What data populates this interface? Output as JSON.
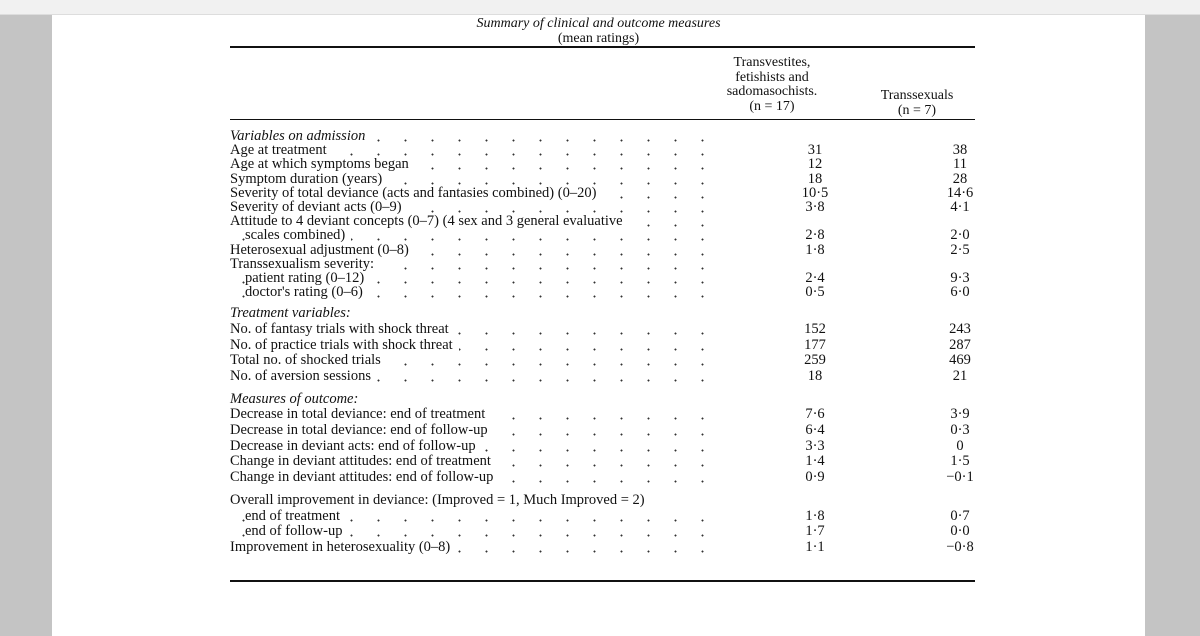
{
  "caption": {
    "title": "Summary of clinical and outcome measures",
    "subtitle": "(mean ratings)"
  },
  "columns": [
    {
      "lines": [
        "Transvestites,",
        "fetishists and",
        "sadomasochists.",
        "(n = 17)"
      ]
    },
    {
      "lines": [
        "Transsexuals",
        "(n = 7)"
      ]
    }
  ],
  "sections": [
    {
      "heading": "Variables on admission",
      "rows": [
        {
          "label": "Age at treatment",
          "v1": "31",
          "v2": "38"
        },
        {
          "label": "Age at which symptoms began",
          "v1": "12",
          "v2": "11"
        },
        {
          "label": "Symptom duration (years)",
          "v1": "18",
          "v2": "28"
        },
        {
          "label": "Severity of total deviance (acts and fantasies combined) (0–20)",
          "v1": "10·5",
          "v2": "14·6"
        },
        {
          "label": "Severity of deviant acts (0–9)",
          "v1": "3·8",
          "v2": "4·1"
        },
        {
          "label": "Attitude to 4 deviant concepts (0–7) (4 sex and 3 general evaluative",
          "v1": "",
          "v2": ""
        },
        {
          "label": "scales combined)",
          "v1": "2·8",
          "v2": "2·0",
          "indent": true
        },
        {
          "label": "Heterosexual adjustment (0–8)",
          "v1": "1·8",
          "v2": "2·5"
        },
        {
          "label": "Transsexualism severity:",
          "v1": "",
          "v2": ""
        },
        {
          "label": "patient rating (0–12)",
          "v1": "2·4",
          "v2": "9·3",
          "indent": true
        },
        {
          "label": "doctor's rating (0–6)",
          "v1": "0·5",
          "v2": "6·0",
          "indent": true
        }
      ]
    },
    {
      "heading": "Treatment variables:",
      "rows": [
        {
          "label": "No. of fantasy trials with shock threat",
          "v1": "152",
          "v2": "243"
        },
        {
          "label": "No. of practice trials with shock threat",
          "v1": "177",
          "v2": "287"
        },
        {
          "label": "Total no. of shocked trials",
          "v1": "259",
          "v2": "469"
        },
        {
          "label": "No. of aversion sessions",
          "v1": "18",
          "v2": "21"
        }
      ]
    },
    {
      "heading": "Measures of outcome:",
      "rows": [
        {
          "label": "Decrease in total deviance: end of treatment",
          "v1": "7·6",
          "v2": "3·9"
        },
        {
          "label": "Decrease in total deviance: end of follow-up",
          "v1": "6·4",
          "v2": "0·3"
        },
        {
          "label": "Decrease in deviant acts: end of follow-up",
          "v1": "3·3",
          "v2": "0"
        },
        {
          "label": "Change in deviant attitudes: end of treatment",
          "v1": "1·4",
          "v2": "1·5"
        },
        {
          "label": "Change in deviant attitudes: end of follow-up",
          "v1": "0·9",
          "v2": "−0·1"
        }
      ]
    },
    {
      "heading": "",
      "rows": [
        {
          "label": "Overall improvement in deviance: (Improved = 1, Much Improved = 2)",
          "v1": "",
          "v2": "",
          "noleader": true
        },
        {
          "label": "end of treatment",
          "v1": "1·8",
          "v2": "0·7",
          "indent": true
        },
        {
          "label": "end of follow-up",
          "v1": "1·7",
          "v2": "0·0",
          "indent": true
        },
        {
          "label": "Improvement in heterosexuality (0–8)",
          "v1": "1·1",
          "v2": "−0·8"
        }
      ]
    }
  ]
}
